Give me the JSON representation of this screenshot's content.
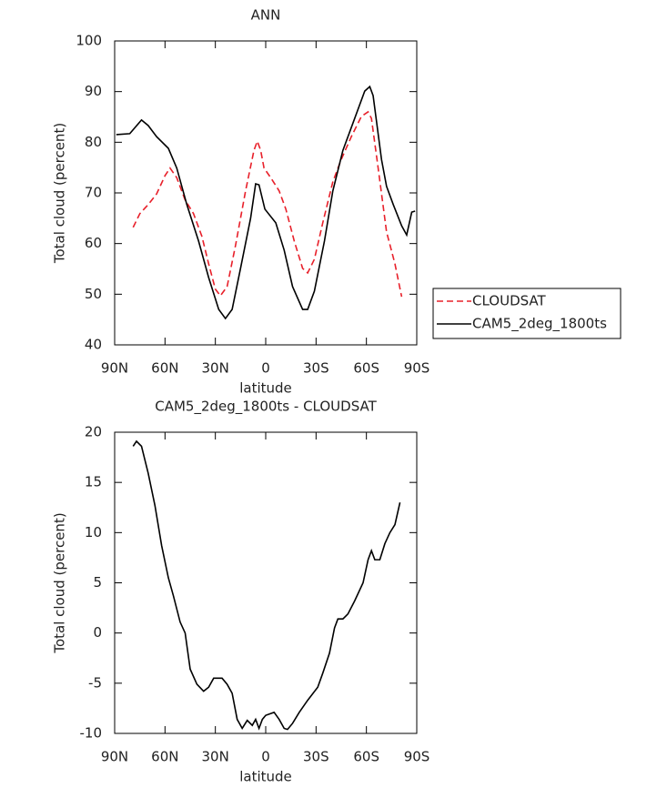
{
  "chart_data": [
    {
      "type": "line",
      "title": "ANN",
      "xlabel": "latitude",
      "ylabel": "Total cloud (percent)",
      "xlim": [
        90,
        -90
      ],
      "xticks": [
        {
          "value": 90,
          "label": "90N"
        },
        {
          "value": 60,
          "label": "60N"
        },
        {
          "value": 30,
          "label": "30N"
        },
        0,
        {
          "value": -30,
          "label": "30S"
        },
        {
          "value": -60,
          "label": "60S"
        },
        {
          "value": -90,
          "label": "90S"
        }
      ],
      "ylim": [
        40,
        100
      ],
      "yticks": [
        40,
        50,
        60,
        70,
        80,
        90,
        100
      ],
      "legend": "right",
      "series": [
        {
          "name": "CLOUDSAT",
          "color": "#e8202a",
          "style": "dashed",
          "x": [
            79,
            75,
            70,
            65,
            60,
            57,
            53,
            48,
            43,
            38,
            34,
            30,
            27,
            23,
            18,
            12,
            7,
            5,
            3,
            1,
            -3,
            -8,
            -12,
            -17,
            -22,
            -25,
            -29,
            -34,
            -40,
            -45,
            -51,
            -57,
            -61,
            -63,
            -67,
            -72,
            -77,
            -81
          ],
          "values": [
            63.2,
            65.9,
            67.7,
            69.8,
            73.4,
            74.9,
            73,
            68.6,
            65.9,
            61.4,
            56,
            51,
            49.7,
            51.5,
            59.6,
            70.4,
            78.4,
            80.2,
            78.4,
            74.9,
            73,
            70.4,
            66.8,
            60.5,
            55.1,
            54.2,
            56.9,
            64.1,
            72.2,
            76.6,
            81.1,
            85.1,
            86,
            84.7,
            74.9,
            62.3,
            56,
            49.5
          ]
        },
        {
          "name": "CAM5_2deg_1800ts",
          "color": "#000000",
          "style": "solid",
          "x": [
            89,
            81,
            74,
            70,
            65,
            58,
            53,
            47,
            40,
            34,
            28,
            24,
            20,
            15,
            9,
            6,
            4,
            0.5,
            -6,
            -11,
            -16,
            -22,
            -25,
            -29,
            -35,
            -40,
            -46,
            -53,
            -59,
            -62,
            -64,
            -69,
            -72,
            -76,
            -81,
            -84,
            -87,
            -89
          ],
          "values": [
            81.5,
            81.7,
            84.4,
            83.3,
            81.1,
            78.8,
            74.9,
            67.7,
            60.5,
            53.3,
            47,
            45.2,
            47,
            55.1,
            65,
            71.8,
            71.6,
            66.8,
            64.1,
            58.7,
            51.5,
            47,
            47,
            50.6,
            60.5,
            70.4,
            78.4,
            84.7,
            90.1,
            91,
            89.2,
            76.6,
            71.3,
            67.7,
            63.5,
            61.7,
            66.2,
            66.4
          ]
        }
      ]
    },
    {
      "type": "line",
      "title": "CAM5_2deg_1800ts - CLOUDSAT",
      "xlabel": "latitude",
      "ylabel": "Total cloud (percent)",
      "xlim": [
        90,
        -90
      ],
      "xticks": [
        {
          "value": 90,
          "label": "90N"
        },
        {
          "value": 60,
          "label": "60N"
        },
        {
          "value": 30,
          "label": "30N"
        },
        0,
        {
          "value": -30,
          "label": "30S"
        },
        {
          "value": -60,
          "label": "60S"
        },
        {
          "value": -90,
          "label": "90S"
        }
      ],
      "ylim": [
        -10,
        20
      ],
      "yticks": [
        -10,
        -5,
        0,
        5,
        10,
        15,
        20
      ],
      "series": [
        {
          "color": "#000000",
          "style": "solid",
          "x": [
            79,
            77,
            74,
            70,
            66,
            62,
            58,
            55,
            51,
            48,
            45,
            41,
            37,
            34,
            31,
            26,
            23,
            20,
            17,
            14,
            11,
            8,
            6,
            4,
            2,
            0,
            -5,
            -8,
            -11,
            -13,
            -16,
            -20,
            -25,
            -31,
            -34,
            -38,
            -41,
            -43,
            -46,
            -49,
            -53,
            -58,
            -61,
            -63,
            -65,
            -68,
            -71,
            -74,
            -77,
            -80
          ],
          "values": [
            18.6,
            19.1,
            18.6,
            15.9,
            12.7,
            8.7,
            5.5,
            3.7,
            1.1,
            0,
            -3.6,
            -5.1,
            -5.8,
            -5.4,
            -4.5,
            -4.5,
            -5.1,
            -6,
            -8.6,
            -9.5,
            -8.7,
            -9.2,
            -8.6,
            -9.5,
            -8.6,
            -8.2,
            -7.9,
            -8.6,
            -9.5,
            -9.6,
            -9,
            -7.9,
            -6.7,
            -5.4,
            -4,
            -2,
            0.5,
            1.4,
            1.4,
            1.9,
            3.2,
            5,
            7.3,
            8.2,
            7.3,
            7.3,
            8.9,
            10,
            10.8,
            13
          ]
        }
      ]
    }
  ]
}
